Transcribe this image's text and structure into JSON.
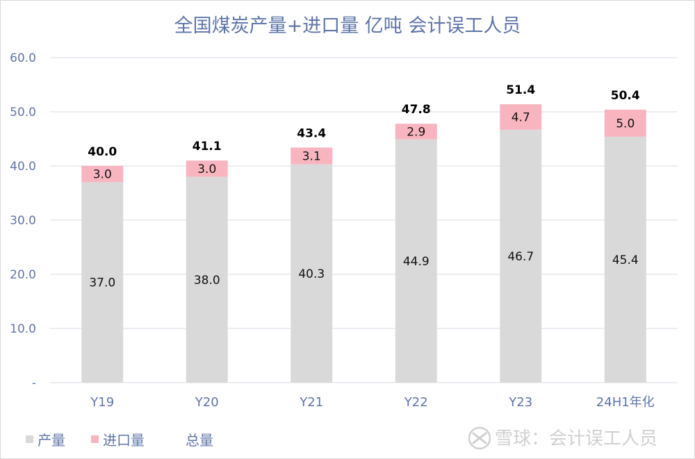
{
  "chart_data": {
    "type": "bar",
    "stacked": true,
    "title": "全国煤炭产量+进口量 亿吨 会计误工人员",
    "categories": [
      "Y19",
      "Y20",
      "Y21",
      "Y22",
      "Y23",
      "24H1年化"
    ],
    "series": [
      {
        "name": "产量",
        "values": [
          37.0,
          38.0,
          40.3,
          44.9,
          46.7,
          45.4
        ],
        "labels": [
          "37.0",
          "38.0",
          "40.3",
          "44.9",
          "46.7",
          "45.4"
        ],
        "color": "#d9d9d9"
      },
      {
        "name": "进口量",
        "values": [
          3.0,
          3.0,
          3.1,
          2.9,
          4.7,
          5.0
        ],
        "labels": [
          "3.0",
          "3.0",
          "3.1",
          "2.9",
          "4.7",
          "5.0"
        ],
        "color": "#f8b5c0"
      }
    ],
    "totals": {
      "name": "总量",
      "values": [
        40.0,
        41.1,
        43.4,
        47.8,
        51.4,
        50.4
      ],
      "labels": [
        "40.0",
        "41.1",
        "43.4",
        "47.8",
        "51.4",
        "50.4"
      ]
    },
    "ylim": [
      0,
      60
    ],
    "yticks": [
      {
        "value": 0,
        "label": "-"
      },
      {
        "value": 10,
        "label": "10.0"
      },
      {
        "value": 20,
        "label": "20.0"
      },
      {
        "value": 30,
        "label": "30.0"
      },
      {
        "value": 40,
        "label": "40.0"
      },
      {
        "value": 50,
        "label": "50.0"
      },
      {
        "value": 60,
        "label": "60.0"
      }
    ],
    "grid": true,
    "legend_position": "bottom-left",
    "gridline_color": "#d9d9e6",
    "axis_text_color": "#5e75a8"
  },
  "watermark": {
    "text": "雪球：会计误工人员"
  }
}
